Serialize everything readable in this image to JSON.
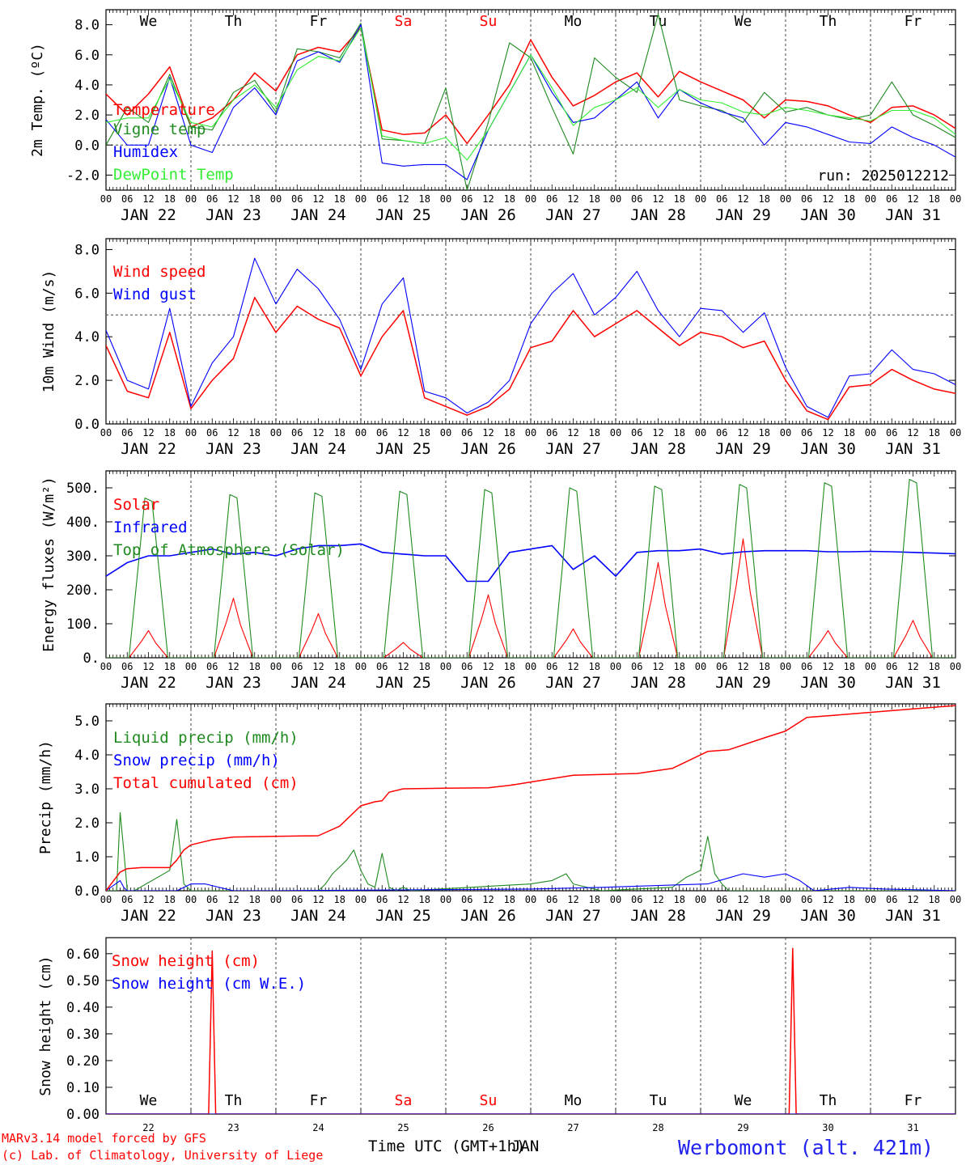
{
  "footer": {
    "model_line": "MARv3.14 model forced by GFS",
    "lab_line": "(c) Lab. of Climatology, University of Liege",
    "xlabel": "Time UTC (GMT+1h)",
    "xlabel_overlay": "JAN",
    "station": "Werbomont (alt. 421m)"
  },
  "colors": {
    "red": "#ff0000",
    "green": "#1f8a1f",
    "blue": "#0000ff",
    "lightgreen": "#33ee33"
  },
  "hour_ticks": [
    "00",
    "06",
    "12",
    "18"
  ],
  "date_labels": [
    "JAN 22",
    "JAN 23",
    "JAN 24",
    "JAN 25",
    "JAN 26",
    "JAN 27",
    "JAN 28",
    "JAN 29",
    "JAN 30",
    "JAN 31"
  ],
  "weekdays": [
    {
      "label": "We",
      "color": "#000000"
    },
    {
      "label": "Th",
      "color": "#000000"
    },
    {
      "label": "Fr",
      "color": "#000000"
    },
    {
      "label": "Sa",
      "color": "#ff0000"
    },
    {
      "label": "Su",
      "color": "#ff0000"
    },
    {
      "label": "Mo",
      "color": "#000000"
    },
    {
      "label": "Tu",
      "color": "#000000"
    },
    {
      "label": "We",
      "color": "#000000"
    },
    {
      "label": "Th",
      "color": "#000000"
    },
    {
      "label": "Fr",
      "color": "#000000"
    }
  ],
  "day_numbers": [
    "22",
    "23",
    "24",
    "25",
    "26",
    "27",
    "28",
    "29",
    "30",
    "31"
  ],
  "chart_data": [
    {
      "type": "line",
      "ylabel": "2m Temp. (ºC)",
      "ylim": [
        -3,
        9
      ],
      "yticks": [
        "8.0",
        "6.0",
        "4.0",
        "2.0",
        "0.0",
        "-2.0"
      ],
      "ytick_values": [
        8,
        6,
        4,
        2,
        0,
        -2
      ],
      "ref_line": 0,
      "annotation": "run: 2025012212",
      "x_unit": "hours since JAN 22 00 UTC",
      "series": [
        {
          "name": "Temperature",
          "color": "#ff0000",
          "x": [
            0,
            6,
            12,
            18,
            24,
            30,
            36,
            42,
            48,
            54,
            60,
            66,
            72,
            78,
            84,
            90,
            96,
            102,
            108,
            114,
            120,
            126,
            132,
            138,
            144,
            150,
            156,
            162,
            168,
            174,
            180,
            186,
            192,
            198,
            204,
            210,
            216,
            222,
            228,
            234,
            240
          ],
          "values": [
            3.4,
            2.0,
            3.4,
            5.2,
            1.2,
            1.8,
            3.0,
            4.8,
            3.6,
            6.0,
            6.5,
            6.2,
            7.8,
            1.0,
            0.7,
            0.8,
            2.0,
            0.1,
            2.0,
            4.0,
            7.0,
            4.5,
            2.6,
            3.3,
            4.2,
            4.8,
            3.2,
            4.9,
            4.2,
            3.6,
            3.0,
            1.8,
            3.0,
            2.9,
            2.6,
            2.0,
            1.5,
            2.5,
            2.6,
            2.0,
            1.1
          ]
        },
        {
          "name": "Vigne temp",
          "color": "#1f8a1f",
          "x": [
            0,
            6,
            12,
            18,
            24,
            30,
            36,
            42,
            48,
            54,
            60,
            66,
            72,
            78,
            84,
            90,
            96,
            102,
            108,
            114,
            120,
            126,
            132,
            138,
            144,
            150,
            156,
            162,
            168,
            174,
            180,
            186,
            192,
            198,
            204,
            210,
            216,
            222,
            228,
            234,
            240
          ],
          "values": [
            0.0,
            2.5,
            1.5,
            4.7,
            1.2,
            1.0,
            3.5,
            4.3,
            2.2,
            6.4,
            6.2,
            5.8,
            8.1,
            0.4,
            0.3,
            0.1,
            3.8,
            -3.0,
            1.5,
            6.8,
            5.8,
            2.5,
            -0.6,
            5.8,
            4.5,
            3.5,
            8.7,
            3.0,
            2.6,
            2.3,
            1.5,
            3.5,
            2.2,
            2.5,
            2.0,
            1.7,
            2.0,
            4.2,
            2.0,
            1.3,
            0.5
          ]
        },
        {
          "name": "Humidex",
          "color": "#0000ff",
          "x": [
            0,
            6,
            12,
            18,
            24,
            30,
            36,
            42,
            48,
            54,
            60,
            66,
            72,
            78,
            84,
            90,
            96,
            102,
            108,
            114,
            120,
            126,
            132,
            138,
            144,
            150,
            156,
            162,
            168,
            174,
            180,
            186,
            192,
            198,
            204,
            210,
            216,
            222,
            228,
            234,
            240
          ],
          "values": [
            1.7,
            0.0,
            0.0,
            4.5,
            0.0,
            -0.5,
            2.5,
            3.8,
            2.0,
            5.6,
            6.2,
            5.5,
            8.0,
            -1.2,
            -1.4,
            -1.3,
            -1.3,
            -2.3,
            1.0,
            3.5,
            6.0,
            3.5,
            1.5,
            1.8,
            3.0,
            4.2,
            1.8,
            3.7,
            2.8,
            2.2,
            1.8,
            0.0,
            1.5,
            1.2,
            0.7,
            0.2,
            0.1,
            1.2,
            0.5,
            0.0,
            -0.8
          ]
        },
        {
          "name": "DewPoint Temp",
          "color": "#33ee33",
          "x": [
            0,
            6,
            12,
            18,
            24,
            30,
            36,
            42,
            48,
            54,
            60,
            66,
            72,
            78,
            84,
            90,
            96,
            102,
            108,
            114,
            120,
            126,
            132,
            138,
            144,
            150,
            156,
            162,
            168,
            174,
            180,
            186,
            192,
            198,
            204,
            210,
            216,
            222,
            228,
            234,
            240
          ],
          "values": [
            1.5,
            1.8,
            1.8,
            4.4,
            1.5,
            1.2,
            3.0,
            4.0,
            2.5,
            5.0,
            5.9,
            5.6,
            7.8,
            0.6,
            0.3,
            0.1,
            0.5,
            -1.0,
            1.0,
            3.5,
            6.0,
            3.8,
            1.3,
            2.5,
            3.0,
            3.8,
            2.5,
            3.7,
            3.0,
            2.8,
            2.2,
            2.0,
            2.5,
            2.3,
            2.0,
            1.8,
            1.6,
            2.3,
            2.3,
            1.8,
            0.7
          ]
        }
      ]
    },
    {
      "type": "line",
      "ylabel": "10m Wind (m/s)",
      "ylim": [
        0,
        8.5
      ],
      "yticks": [
        "8.0",
        "6.0",
        "4.0",
        "2.0",
        "0.0"
      ],
      "ytick_values": [
        8,
        6,
        4,
        2,
        0
      ],
      "ref_line": 5,
      "x_unit": "hours since JAN 22 00 UTC",
      "series": [
        {
          "name": "Wind speed",
          "color": "#ff0000",
          "x": [
            0,
            6,
            12,
            18,
            24,
            30,
            36,
            42,
            48,
            54,
            60,
            66,
            72,
            78,
            84,
            90,
            96,
            102,
            108,
            114,
            120,
            126,
            132,
            138,
            144,
            150,
            156,
            162,
            168,
            174,
            180,
            186,
            192,
            198,
            204,
            210,
            216,
            222,
            228,
            234,
            240
          ],
          "values": [
            3.6,
            1.5,
            1.2,
            4.2,
            0.7,
            2.0,
            3.0,
            5.8,
            4.2,
            5.4,
            4.8,
            4.4,
            2.2,
            4.0,
            5.2,
            1.2,
            0.8,
            0.4,
            0.8,
            1.6,
            3.5,
            3.8,
            5.2,
            4.0,
            4.6,
            5.2,
            4.4,
            3.6,
            4.2,
            4.0,
            3.5,
            3.8,
            2.0,
            0.6,
            0.2,
            1.7,
            1.8,
            2.5,
            2.0,
            1.6,
            1.4
          ]
        },
        {
          "name": "Wind gust",
          "color": "#0000ff",
          "x": [
            0,
            6,
            12,
            18,
            24,
            30,
            36,
            42,
            48,
            54,
            60,
            66,
            72,
            78,
            84,
            90,
            96,
            102,
            108,
            114,
            120,
            126,
            132,
            138,
            144,
            150,
            156,
            162,
            168,
            174,
            180,
            186,
            192,
            198,
            204,
            210,
            216,
            222,
            228,
            234,
            240
          ],
          "values": [
            4.3,
            2.0,
            1.6,
            5.3,
            0.8,
            2.8,
            4.0,
            7.6,
            5.5,
            7.1,
            6.2,
            4.8,
            2.5,
            5.5,
            6.7,
            1.5,
            1.2,
            0.5,
            1.0,
            2.0,
            4.6,
            6.0,
            6.9,
            5.0,
            5.8,
            7.0,
            5.2,
            4.0,
            5.3,
            5.2,
            4.2,
            5.1,
            2.6,
            0.8,
            0.3,
            2.2,
            2.3,
            3.4,
            2.5,
            2.3,
            1.8
          ]
        }
      ]
    },
    {
      "type": "line",
      "ylabel": "Energy fluxes (W/m²)",
      "ylim": [
        0,
        550
      ],
      "yticks": [
        "500.",
        "400.",
        "300.",
        "200.",
        "100.",
        "0."
      ],
      "ytick_values": [
        500,
        400,
        300,
        200,
        100,
        0
      ],
      "x_unit": "hours since JAN 22 00 UTC",
      "series": [
        {
          "name": "Solar",
          "color": "#ff0000",
          "peaks": [
            80,
            175,
            130,
            45,
            185,
            85,
            280,
            350,
            80,
            110
          ]
        },
        {
          "name": "Infrared",
          "color": "#0000ff",
          "x": [
            0,
            6,
            12,
            18,
            24,
            30,
            36,
            42,
            48,
            54,
            60,
            66,
            72,
            78,
            84,
            90,
            96,
            102,
            108,
            114,
            120,
            126,
            132,
            138,
            144,
            150,
            156,
            162,
            168,
            174,
            180,
            186,
            192,
            198,
            204,
            210,
            216,
            222,
            228,
            234,
            240
          ],
          "values": [
            240,
            280,
            300,
            300,
            310,
            320,
            305,
            310,
            300,
            320,
            330,
            330,
            335,
            310,
            305,
            300,
            300,
            225,
            225,
            310,
            320,
            330,
            260,
            300,
            240,
            310,
            315,
            315,
            320,
            305,
            312,
            315,
            315,
            315,
            312,
            312,
            313,
            312,
            310,
            308,
            306
          ]
        },
        {
          "name": "Top of Atmosphere (Solar)",
          "color": "#1f8a1f",
          "peaks": [
            470,
            480,
            485,
            490,
            495,
            500,
            505,
            510,
            515,
            525
          ]
        }
      ]
    },
    {
      "type": "line",
      "ylabel": "Precip (mm/h)",
      "ylim": [
        0,
        5.5
      ],
      "yticks": [
        "5.0",
        "4.0",
        "3.0",
        "2.0",
        "1.0",
        "0.0"
      ],
      "ytick_values": [
        5,
        4,
        3,
        2,
        1,
        0
      ],
      "x_unit": "hours since JAN 22 00 UTC",
      "series": [
        {
          "name": "Liquid precip (mm/h)",
          "color": "#1f8a1f",
          "x": [
            0,
            3,
            4,
            5,
            6,
            8,
            18,
            20,
            22,
            24,
            26,
            40,
            60,
            62,
            64,
            66,
            68,
            70,
            72,
            74,
            76,
            78,
            80,
            82,
            84,
            86,
            120,
            126,
            130,
            132,
            140,
            160,
            164,
            168,
            170,
            172,
            174,
            176,
            240
          ],
          "values": [
            0,
            0,
            2.3,
            1.2,
            0,
            0,
            0.6,
            2.1,
            0.2,
            0,
            0,
            0,
            0,
            0.2,
            0.5,
            0.7,
            0.9,
            1.2,
            0.6,
            0.2,
            0.1,
            1.1,
            0.1,
            0,
            0.1,
            0,
            0.2,
            0.3,
            0.5,
            0.2,
            0,
            0.1,
            0.4,
            0.6,
            1.6,
            0.5,
            0.2,
            0,
            0
          ]
        },
        {
          "name": "Snow precip (mm/h)",
          "color": "#0000ff",
          "x": [
            0,
            4,
            5,
            6,
            20,
            24,
            28,
            36,
            48,
            120,
            140,
            170,
            180,
            186,
            192,
            196,
            200,
            210,
            220,
            240
          ],
          "values": [
            0,
            0.3,
            0.1,
            0,
            0,
            0.2,
            0.2,
            0,
            0,
            0.05,
            0.1,
            0.2,
            0.5,
            0.4,
            0.5,
            0.3,
            0,
            0.1,
            0.05,
            0
          ]
        },
        {
          "name": "Total cumulated (cm)",
          "color": "#ff0000",
          "x": [
            0,
            4,
            6,
            10,
            18,
            20,
            22,
            24,
            30,
            36,
            48,
            60,
            66,
            72,
            76,
            78,
            80,
            84,
            96,
            108,
            114,
            120,
            132,
            150,
            160,
            166,
            170,
            176,
            186,
            192,
            198,
            204,
            216,
            228,
            240
          ],
          "values": [
            0,
            0.55,
            0.65,
            0.68,
            0.68,
            0.9,
            1.2,
            1.35,
            1.5,
            1.58,
            1.6,
            1.62,
            1.9,
            2.5,
            2.62,
            2.65,
            2.9,
            3.0,
            3.02,
            3.03,
            3.1,
            3.2,
            3.4,
            3.45,
            3.6,
            3.9,
            4.1,
            4.15,
            4.5,
            4.7,
            5.1,
            5.15,
            5.25,
            5.35,
            5.45
          ]
        }
      ]
    },
    {
      "type": "line",
      "ylabel": "Snow height (cm)",
      "ylim": [
        0,
        0.66
      ],
      "yticks": [
        "0.60",
        "0.50",
        "0.40",
        "0.30",
        "0.20",
        "0.10",
        "0.00"
      ],
      "ytick_values": [
        0.6,
        0.5,
        0.4,
        0.3,
        0.2,
        0.1,
        0
      ],
      "x_unit": "hours since JAN 22 00 UTC",
      "series": [
        {
          "name": "Snow height (cm)",
          "color": "#ff0000",
          "x": [
            0,
            29,
            30,
            31,
            193,
            194,
            195,
            240
          ],
          "values": [
            0,
            0,
            0.61,
            0,
            0,
            0.62,
            0,
            0
          ]
        },
        {
          "name": "Snow height (cm W.E.)",
          "color": "#0000ff",
          "x": [
            0,
            240
          ],
          "values": [
            0,
            0
          ]
        }
      ]
    }
  ]
}
